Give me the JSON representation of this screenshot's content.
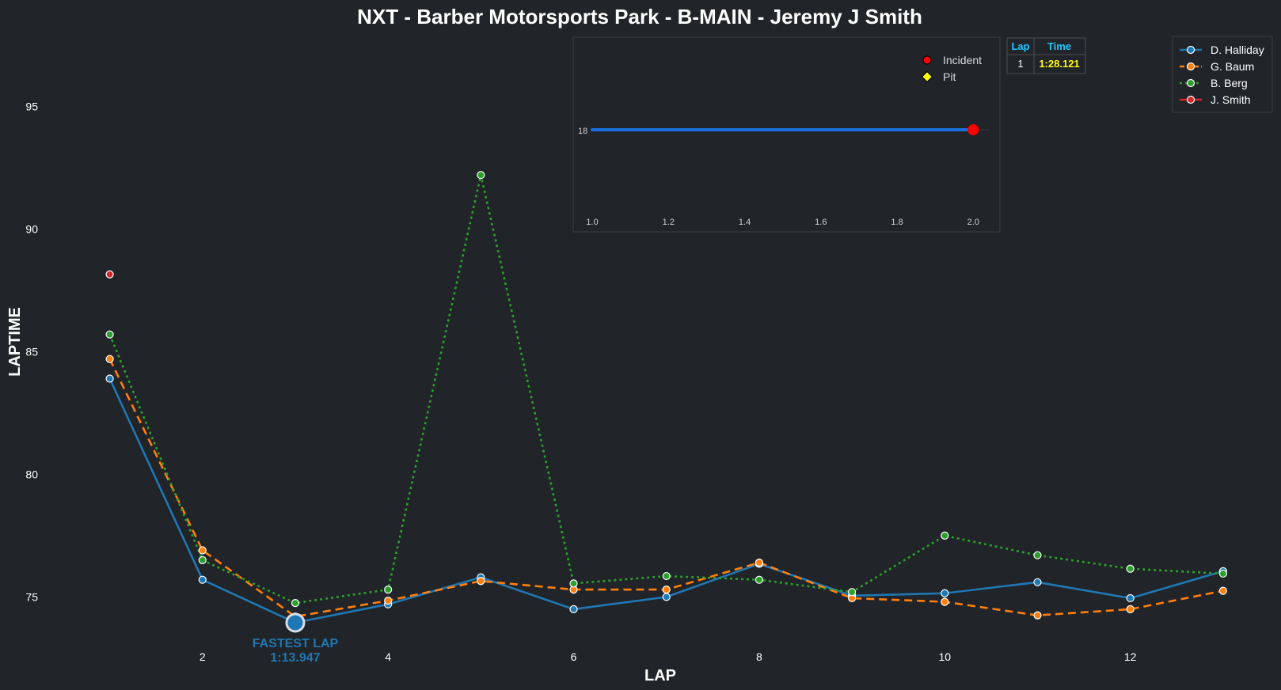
{
  "chart_data": {
    "type": "line",
    "title": "NXT - Barber Motorsports Park - B-MAIN - Jeremy J Smith",
    "xlabel": "LAP",
    "ylabel": "LAPTIME",
    "xlim": [
      0.5,
      13.3
    ],
    "ylim": [
      72.4,
      97.4
    ],
    "x_ticks": [
      "2",
      "4",
      "6",
      "8",
      "10",
      "12"
    ],
    "y_ticks": [
      "75",
      "80",
      "85",
      "90",
      "95"
    ],
    "grid": false,
    "legend_position": "top-right",
    "series": [
      {
        "name": "D. Halliday",
        "color": "#1f77b4",
        "dash": "solid",
        "points": [
          [
            1,
            83.9
          ],
          [
            2,
            75.7
          ],
          [
            3,
            73.95
          ],
          [
            4,
            74.7
          ],
          [
            5,
            75.8
          ],
          [
            6,
            74.5
          ],
          [
            7,
            75.0
          ],
          [
            8,
            76.35
          ],
          [
            9,
            75.05
          ],
          [
            10,
            75.15
          ],
          [
            11,
            75.6
          ],
          [
            12,
            74.95
          ],
          [
            13,
            76.05
          ]
        ]
      },
      {
        "name": "G. Baum",
        "color": "#ff7f0e",
        "dash": "dashed",
        "points": [
          [
            1,
            84.7
          ],
          [
            2,
            76.9
          ],
          [
            3,
            74.2
          ],
          [
            4,
            74.85
          ],
          [
            5,
            75.65
          ],
          [
            6,
            75.3
          ],
          [
            7,
            75.3
          ],
          [
            8,
            76.4
          ],
          [
            9,
            74.95
          ],
          [
            10,
            74.8
          ],
          [
            11,
            74.25
          ],
          [
            12,
            74.5
          ],
          [
            13,
            75.25
          ]
        ]
      },
      {
        "name": "B. Berg",
        "color": "#2ca02c",
        "dash": "dotted",
        "points": [
          [
            1,
            85.7
          ],
          [
            2,
            76.5
          ],
          [
            3,
            74.75
          ],
          [
            4,
            75.3
          ],
          [
            5,
            92.2
          ],
          [
            6,
            75.55
          ],
          [
            7,
            75.85
          ],
          [
            8,
            75.7
          ],
          [
            9,
            75.2
          ],
          [
            10,
            77.5
          ],
          [
            11,
            76.7
          ],
          [
            12,
            76.15
          ],
          [
            13,
            75.95
          ]
        ]
      },
      {
        "name": "J. Smith",
        "color": "#d62728",
        "dash": "solid",
        "points": [
          [
            1,
            88.15
          ]
        ]
      }
    ],
    "annotation": {
      "label": "FASTEST LAP",
      "time": "1:13.947",
      "x": 3,
      "y": 73.95,
      "color": "#1f77b4"
    },
    "inset": {
      "type": "line",
      "xlim": [
        0.95,
        2.07
      ],
      "x_ticks": [
        "1.0",
        "1.2",
        "1.4",
        "1.6",
        "1.8",
        "2.0"
      ],
      "y_tick": "18",
      "position_value": 18,
      "points": [
        [
          1.0,
          18
        ],
        [
          2.0,
          18
        ]
      ],
      "line_color": "#1a6fe0",
      "end_marker": {
        "x": 2.0,
        "y": 18,
        "color": "#ff0000"
      },
      "legend": [
        {
          "label": "Incident",
          "color": "#ff0000",
          "shape": "circle"
        },
        {
          "label": "Pit",
          "color": "#ffff00",
          "shape": "diamond"
        }
      ]
    },
    "table": {
      "headers": [
        "Lap",
        "Time"
      ],
      "rows": [
        [
          "1",
          "1:28.121"
        ]
      ],
      "header_color": "#1ec8ff",
      "time_color": "#ffff00"
    }
  }
}
